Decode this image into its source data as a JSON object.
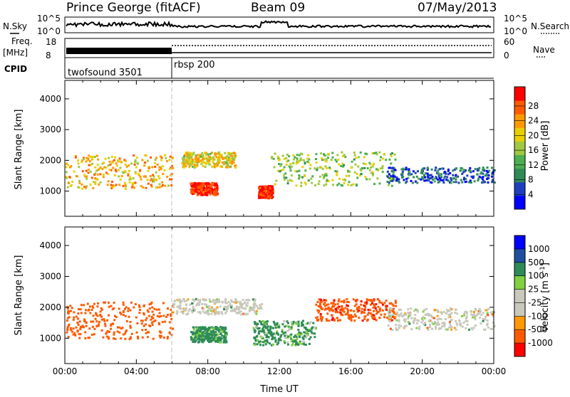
{
  "header": {
    "station": "Prince George (fitACF)",
    "beam": "Beam 09",
    "date": "07/May/2013"
  },
  "noise_panel": {
    "left_label": "N.Sky",
    "right_label": "N.Search",
    "left_ticks": [
      "10^5",
      "10^0"
    ],
    "right_ticks": [
      "10^5",
      "10^0"
    ]
  },
  "freq_panel": {
    "left_label_1": "Freq.",
    "left_label_2": "[MHz]",
    "left_ticks": [
      "18",
      "8"
    ],
    "right_label": "Nave",
    "right_ticks": [
      "60",
      "0"
    ]
  },
  "cpid": {
    "label": "CPID",
    "segments": [
      {
        "name": "twofsound 3501",
        "start_hour": 0
      },
      {
        "name": "rbsp 200",
        "start_hour": 6
      }
    ]
  },
  "colors": {
    "power_scale": [
      "#0000ff",
      "#1f3fbf",
      "#2e8b57",
      "#4caf50",
      "#a0c840",
      "#e8d000",
      "#ff9900",
      "#ff5a00",
      "#ff0000"
    ],
    "velocity_scale": [
      "#ff0000",
      "#ff5a00",
      "#ff9900",
      "#c8c8bc",
      "#c8c8bc",
      "#80d040",
      "#2e8b57",
      "#1f4fa0",
      "#0000ff"
    ],
    "ground_scatter": "#c8c8bc"
  },
  "chart_data": [
    {
      "type": "heatmap",
      "title": "Power",
      "xlabel": "Time UT",
      "ylabel": "Slant Range [km]",
      "xlim": [
        0,
        24
      ],
      "ylim": [
        180,
        4600
      ],
      "x_ticks": [
        "00:00",
        "04:00",
        "08:00",
        "12:00",
        "16:00",
        "20:00",
        "00:00"
      ],
      "y_ticks": [
        1000,
        2000,
        3000,
        4000
      ],
      "colorbar": {
        "label": "Power [dB]",
        "ticks": [
          "4",
          "8",
          "12",
          "16",
          "20",
          "24",
          "28"
        ],
        "range": [
          0,
          30
        ]
      },
      "scatter_regions": [
        {
          "hours": [
            0,
            6
          ],
          "range_km": [
            1100,
            2200
          ],
          "power_db": 20
        },
        {
          "hours": [
            6.5,
            9.5
          ],
          "range_km": [
            1800,
            2300
          ],
          "power_db": 18
        },
        {
          "hours": [
            7,
            8.5
          ],
          "range_km": [
            900,
            1300
          ],
          "power_db": 28
        },
        {
          "hours": [
            10.8,
            11.6
          ],
          "range_km": [
            800,
            1200
          ],
          "power_db": 28
        },
        {
          "hours": [
            11.5,
            18.5
          ],
          "range_km": [
            1200,
            2300
          ],
          "power_db": 14
        },
        {
          "hours": [
            18,
            24
          ],
          "range_km": [
            1300,
            1800
          ],
          "power_db": 6
        }
      ]
    },
    {
      "type": "heatmap",
      "title": "Velocity",
      "xlabel": "Time UT",
      "ylabel": "Slant Range [km]",
      "xlim": [
        0,
        24
      ],
      "ylim": [
        180,
        4600
      ],
      "x_ticks": [
        "00:00",
        "04:00",
        "08:00",
        "12:00",
        "16:00",
        "20:00",
        "00:00"
      ],
      "y_ticks": [
        1000,
        2000,
        3000,
        4000
      ],
      "colorbar": {
        "label": "Velocity [m s",
        "label_sup": "-1",
        "label_end": "]",
        "ticks": [
          "1000",
          "500",
          "100",
          "25",
          "-25",
          "-100",
          "-500",
          "-1000"
        ],
        "range": [
          -1000,
          1000
        ]
      },
      "scatter_regions": [
        {
          "hours": [
            0,
            6
          ],
          "range_km": [
            1000,
            2200
          ],
          "velocity": -300
        },
        {
          "hours": [
            6,
            11
          ],
          "range_km": [
            1800,
            2300
          ],
          "velocity": 0
        },
        {
          "hours": [
            7,
            9
          ],
          "range_km": [
            900,
            1400
          ],
          "velocity": 200
        },
        {
          "hours": [
            10.5,
            14
          ],
          "range_km": [
            800,
            1600
          ],
          "velocity": 150
        },
        {
          "hours": [
            14,
            18.5
          ],
          "range_km": [
            1600,
            2300
          ],
          "velocity": -400
        },
        {
          "hours": [
            18,
            24
          ],
          "range_km": [
            1300,
            2000
          ],
          "velocity": 0
        }
      ]
    }
  ]
}
